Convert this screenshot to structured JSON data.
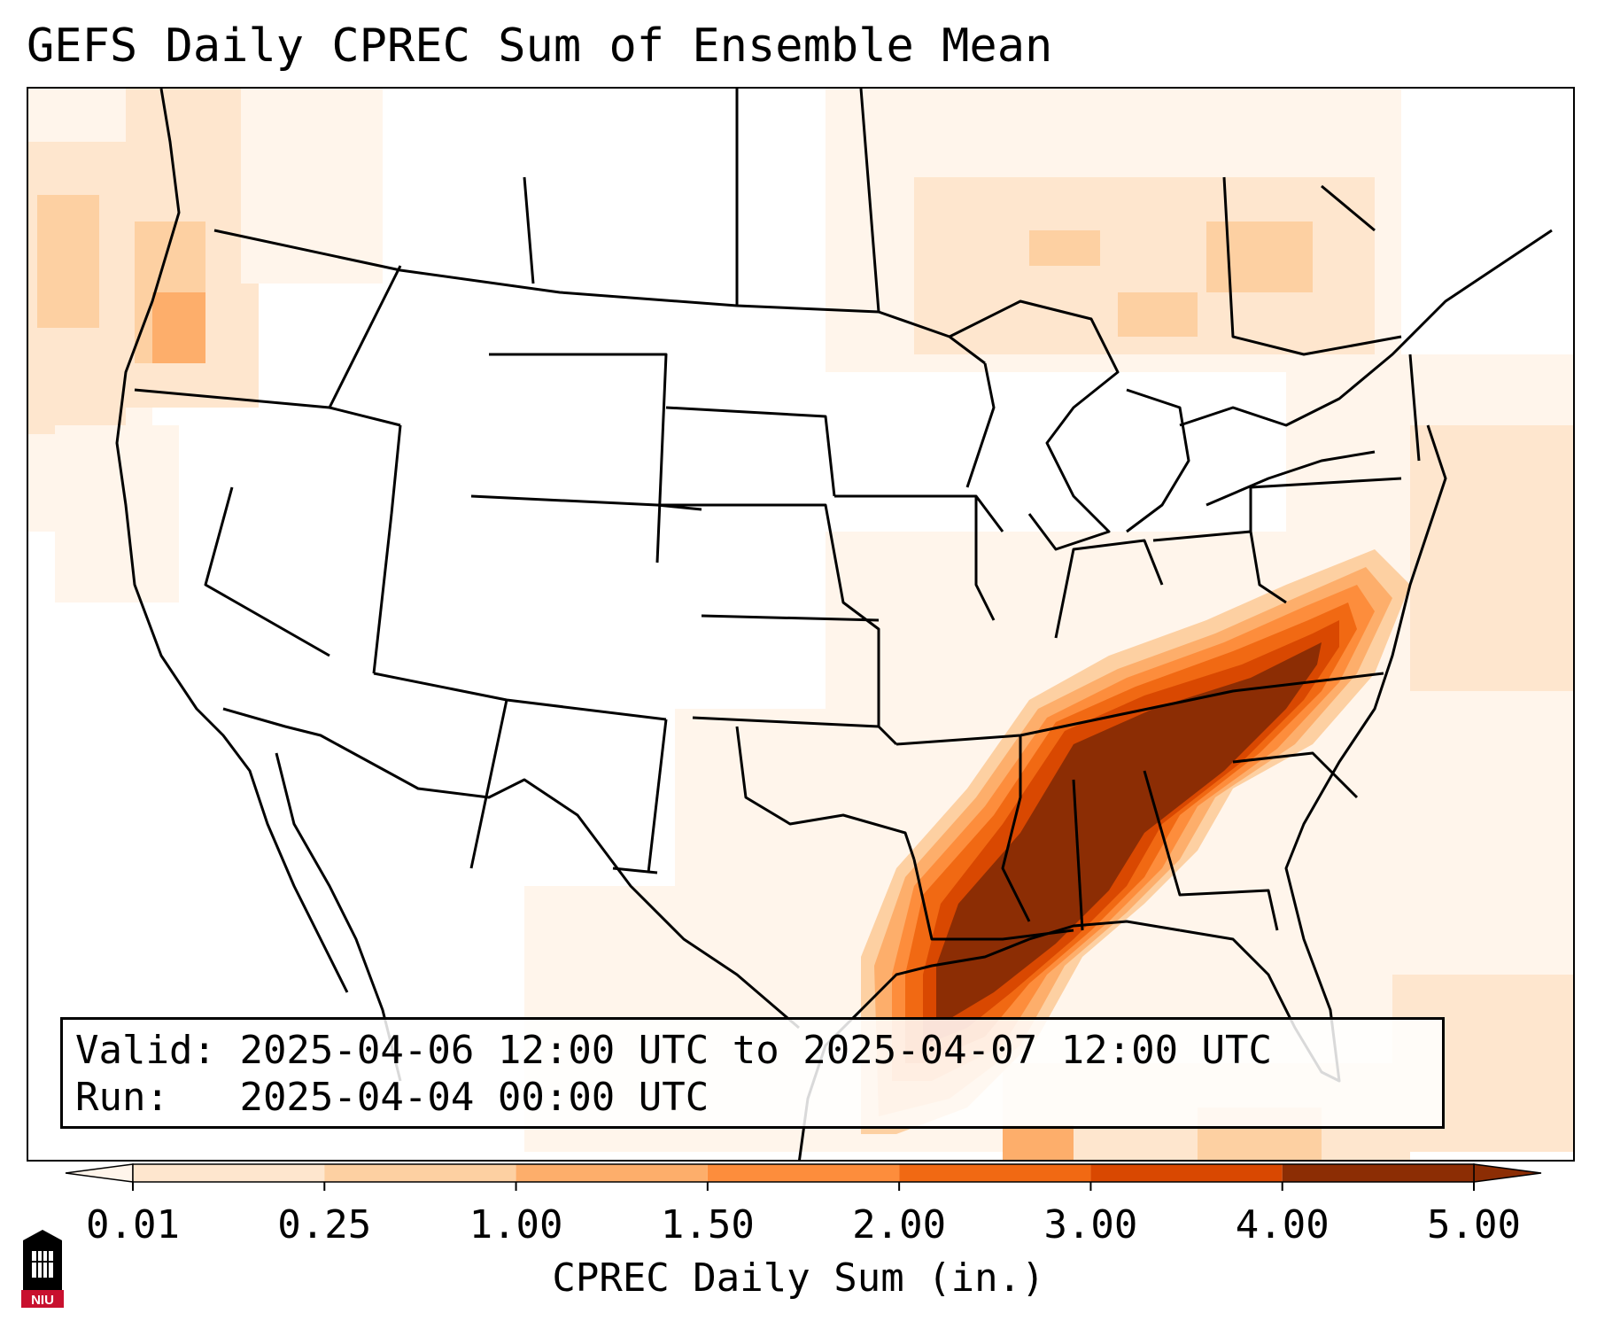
{
  "title": "GEFS Daily CPREC Sum of Ensemble Mean",
  "info": {
    "valid_label": "Valid:",
    "valid_value": "2025-04-06 12:00 UTC to 2025-04-07 12:00 UTC",
    "run_label": "Run:",
    "run_value": "2025-04-04 00:00 UTC"
  },
  "colorbar": {
    "label": "CPREC Daily Sum (in.)",
    "ticks": [
      "0.01",
      "0.25",
      "1.00",
      "1.50",
      "2.00",
      "3.00",
      "4.00",
      "5.00"
    ],
    "colors": [
      "#fff5eb",
      "#fee6ce",
      "#fdd0a2",
      "#fdae6b",
      "#fd8d3c",
      "#f16913",
      "#d94801",
      "#8c2d04"
    ],
    "extend": "both"
  },
  "logo": {
    "text": "NIU",
    "icon": "university-tower-icon",
    "color": "#c8102e"
  },
  "map": {
    "region": "Continental United States",
    "features": [
      "state-borders",
      "country-borders",
      "coastlines",
      "great-lakes"
    ],
    "precip_max_region": "Gulf Coast to Mid-Atlantic (Mississippi, Alabama, Georgia, Tennessee, Virginia)"
  }
}
